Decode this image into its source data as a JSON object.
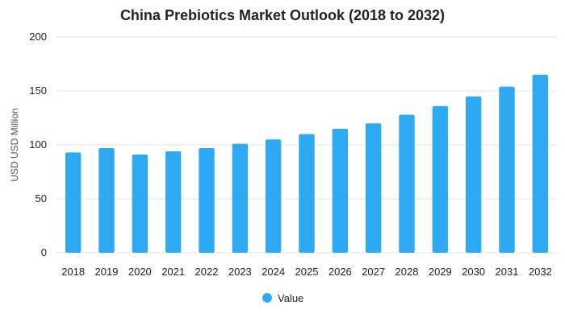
{
  "chart_data": {
    "type": "bar",
    "title": "China Prebiotics Market Outlook (2018 to 2032)",
    "xlabel": "",
    "ylabel": "USD USD Million",
    "categories": [
      "2018",
      "2019",
      "2020",
      "2021",
      "2022",
      "2023",
      "2024",
      "2025",
      "2026",
      "2027",
      "2028",
      "2029",
      "2030",
      "2031",
      "2032"
    ],
    "series": [
      {
        "name": "Value",
        "values": [
          93,
          97,
          91,
          94,
          97,
          101,
          105,
          110,
          115,
          120,
          128,
          136,
          145,
          154,
          165
        ]
      }
    ],
    "ylim": [
      0,
      200
    ],
    "yticks": [
      "0",
      "50",
      "100",
      "150",
      "200"
    ],
    "grid": true,
    "legend": "bottom-center",
    "colors": {
      "bar": "#2eaaf5",
      "grid": "#e3e3e3"
    }
  }
}
